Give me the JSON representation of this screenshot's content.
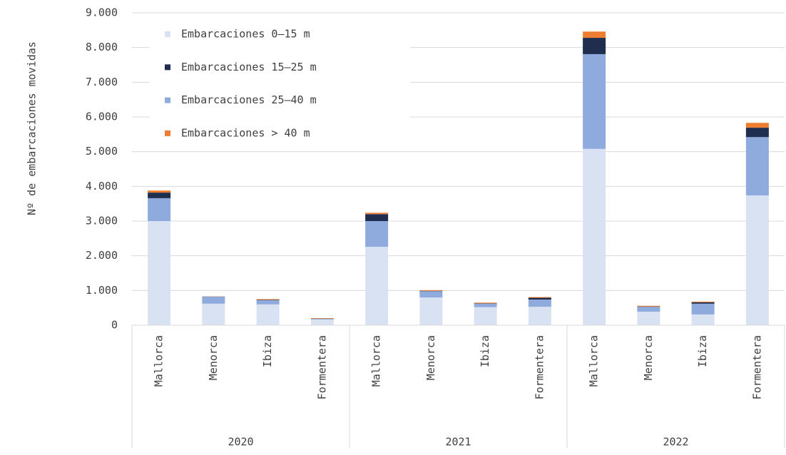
{
  "chart_data": {
    "type": "stacked_bar",
    "y_label": "Nº de embarcaciones movidas",
    "categories": [
      "Mallorca",
      "Menorca",
      "Ibiza",
      "Formentera",
      "Mallorca",
      "Menorca",
      "Ibiza",
      "Formentera",
      "Mallorca",
      "Menorca",
      "Ibiza",
      "Formentera"
    ],
    "groups": [
      "2020",
      "2021",
      "2022"
    ],
    "series": [
      {
        "name": "Embarcaciones 0–15 m",
        "color": "#d9e2f3",
        "values": [
          3000,
          620,
          600,
          165,
          2260,
          800,
          520,
          530,
          5080,
          390,
          310,
          3740
        ]
      },
      {
        "name": "Embarcaciones 15–25 m",
        "color": "#1f2d4e",
        "values": [
          160,
          5,
          10,
          5,
          200,
          10,
          10,
          50,
          470,
          10,
          40,
          270
        ]
      },
      {
        "name": "Embarcaciones 25–40 m",
        "color": "#8faadc",
        "values": [
          660,
          200,
          120,
          20,
          740,
          180,
          100,
          210,
          2730,
          140,
          310,
          1680
        ]
      },
      {
        "name": "Embarcaciones > 40 m",
        "color": "#ed7d31",
        "values": [
          60,
          5,
          20,
          15,
          40,
          20,
          20,
          20,
          180,
          20,
          20,
          140
        ]
      }
    ],
    "stack_order": [
      0,
      2,
      1,
      3
    ],
    "ylim": [
      0,
      9000
    ],
    "yticks": [
      0,
      {
        "value": 1000,
        "label": "1.000"
      },
      {
        "value": 2000,
        "label": "2.000"
      },
      {
        "value": 3000,
        "label": "3.000"
      },
      {
        "value": 4000,
        "label": "4.000"
      },
      {
        "value": 5000,
        "label": "5.000"
      },
      {
        "value": 6000,
        "label": "6.000"
      },
      {
        "value": 7000,
        "label": "7.000"
      },
      {
        "value": 8000,
        "label": "8.000"
      },
      {
        "value": 9000,
        "label": "9.000"
      }
    ],
    "grid": true,
    "legend": "upper left"
  }
}
